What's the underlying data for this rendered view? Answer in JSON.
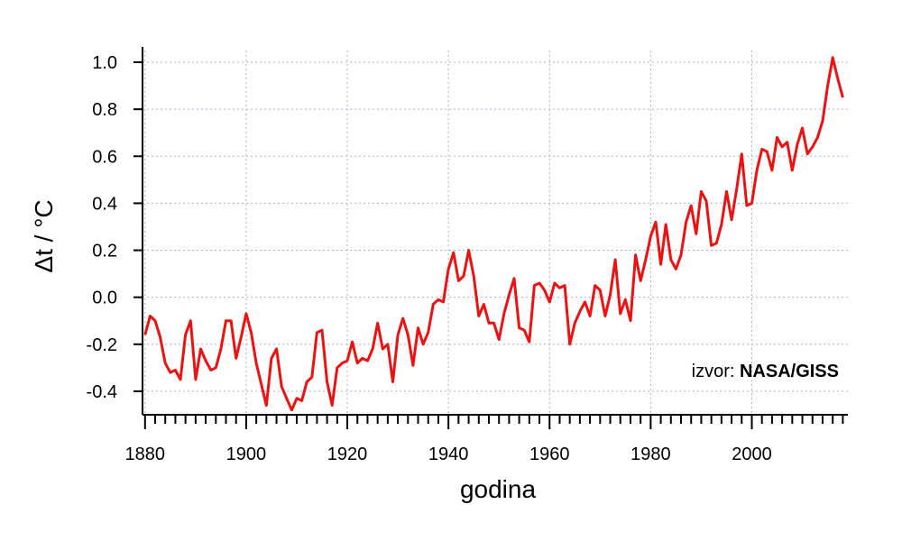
{
  "chart_data": {
    "type": "line",
    "xlabel": "godina",
    "ylabel": "Δt / °C",
    "xlim": [
      1879.5,
      2019
    ],
    "ylim": [
      -0.5,
      1.05
    ],
    "x_ticks": [
      1880,
      1900,
      1920,
      1940,
      1960,
      1980,
      2000
    ],
    "y_ticks": [
      -0.4,
      -0.2,
      0.0,
      0.2,
      0.4,
      0.6,
      0.8,
      1.0
    ],
    "x_tick_labels": [
      "1880",
      "1900",
      "1920",
      "1940",
      "1960",
      "1980",
      "2000"
    ],
    "y_tick_labels": [
      "-0.4",
      "-0.2",
      "0.0",
      "0.2",
      "0.4",
      "0.6",
      "0.8",
      "1.0"
    ],
    "grid": true,
    "color": "#ee1111",
    "annotation": {
      "prefix": "izvor: ",
      "source": "NASA/GISS"
    },
    "series": [
      {
        "x": [
          1880,
          1881,
          1882,
          1883,
          1884,
          1885,
          1886,
          1887,
          1888,
          1889,
          1890,
          1891,
          1892,
          1893,
          1894,
          1895,
          1896,
          1897,
          1898,
          1899,
          1900,
          1901,
          1902,
          1903,
          1904,
          1905,
          1906,
          1907,
          1908,
          1909,
          1910,
          1911,
          1912,
          1913,
          1914,
          1915,
          1916,
          1917,
          1918,
          1919,
          1920,
          1921,
          1922,
          1923,
          1924,
          1925,
          1926,
          1927,
          1928,
          1929,
          1930,
          1931,
          1932,
          1933,
          1934,
          1935,
          1936,
          1937,
          1938,
          1939,
          1940,
          1941,
          1942,
          1943,
          1944,
          1945,
          1946,
          1947,
          1948,
          1949,
          1950,
          1951,
          1952,
          1953,
          1954,
          1955,
          1956,
          1957,
          1958,
          1959,
          1960,
          1961,
          1962,
          1963,
          1964,
          1965,
          1966,
          1967,
          1968,
          1969,
          1970,
          1971,
          1972,
          1973,
          1974,
          1975,
          1976,
          1977,
          1978,
          1979,
          1980,
          1981,
          1982,
          1983,
          1984,
          1985,
          1986,
          1987,
          1988,
          1989,
          1990,
          1991,
          1992,
          1993,
          1994,
          1995,
          1996,
          1997,
          1998,
          1999,
          2000,
          2001,
          2002,
          2003,
          2004,
          2005,
          2006,
          2007,
          2008,
          2009,
          2010,
          2011,
          2012,
          2013,
          2014,
          2015,
          2016,
          2017,
          2018
        ],
        "y": [
          -0.16,
          -0.08,
          -0.1,
          -0.17,
          -0.28,
          -0.32,
          -0.31,
          -0.35,
          -0.16,
          -0.1,
          -0.35,
          -0.22,
          -0.27,
          -0.31,
          -0.3,
          -0.22,
          -0.1,
          -0.1,
          -0.26,
          -0.17,
          -0.07,
          -0.15,
          -0.28,
          -0.37,
          -0.46,
          -0.26,
          -0.22,
          -0.38,
          -0.43,
          -0.48,
          -0.43,
          -0.44,
          -0.36,
          -0.34,
          -0.15,
          -0.14,
          -0.36,
          -0.46,
          -0.3,
          -0.28,
          -0.27,
          -0.19,
          -0.28,
          -0.26,
          -0.27,
          -0.22,
          -0.11,
          -0.22,
          -0.2,
          -0.36,
          -0.16,
          -0.09,
          -0.16,
          -0.29,
          -0.13,
          -0.2,
          -0.15,
          -0.03,
          -0.01,
          -0.02,
          0.12,
          0.19,
          0.07,
          0.09,
          0.2,
          0.09,
          -0.08,
          -0.03,
          -0.11,
          -0.11,
          -0.18,
          -0.07,
          0.01,
          0.08,
          -0.13,
          -0.14,
          -0.19,
          0.05,
          0.06,
          0.03,
          -0.02,
          0.06,
          0.04,
          0.05,
          -0.2,
          -0.11,
          -0.06,
          -0.02,
          -0.08,
          0.05,
          0.03,
          -0.08,
          0.01,
          0.16,
          -0.07,
          -0.01,
          -0.1,
          0.18,
          0.07,
          0.16,
          0.26,
          0.32,
          0.14,
          0.31,
          0.16,
          0.12,
          0.18,
          0.32,
          0.39,
          0.27,
          0.45,
          0.41,
          0.22,
          0.23,
          0.31,
          0.45,
          0.33,
          0.46,
          0.61,
          0.39,
          0.4,
          0.54,
          0.63,
          0.62,
          0.54,
          0.68,
          0.64,
          0.66,
          0.54,
          0.65,
          0.72,
          0.61,
          0.64,
          0.68,
          0.75,
          0.9,
          1.02,
          0.93,
          0.85
        ]
      }
    ]
  }
}
